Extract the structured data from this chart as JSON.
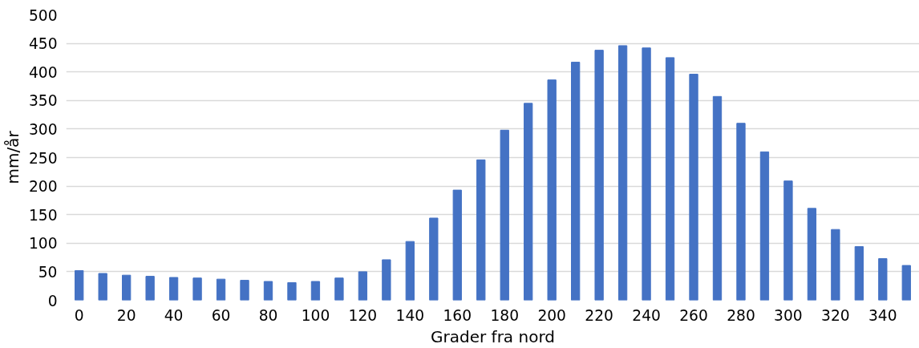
{
  "chart_data": {
    "type": "bar",
    "xlabel": "Grader fra nord",
    "ylabel": "mm/år",
    "categories": [
      "0",
      null,
      "20",
      null,
      "40",
      null,
      "60",
      null,
      "80",
      null,
      "100",
      null,
      "120",
      null,
      "140",
      null,
      "160",
      null,
      "180",
      null,
      "200",
      null,
      "220",
      null,
      "240",
      null,
      "260",
      null,
      "280",
      null,
      "300",
      null,
      "320",
      null,
      "340",
      null
    ],
    "values": [
      52,
      47,
      44,
      42,
      40,
      39,
      37,
      35,
      33,
      31,
      33,
      39,
      50,
      71,
      103,
      144,
      193,
      246,
      298,
      345,
      386,
      417,
      438,
      446,
      442,
      425,
      396,
      357,
      310,
      260,
      209,
      161,
      124,
      94,
      73,
      61
    ],
    "color": "#4472c4",
    "ylim": [
      0,
      500
    ],
    "yticks": [
      0,
      50,
      100,
      150,
      200,
      250,
      300,
      350,
      400,
      450,
      500
    ],
    "grid": "y"
  }
}
